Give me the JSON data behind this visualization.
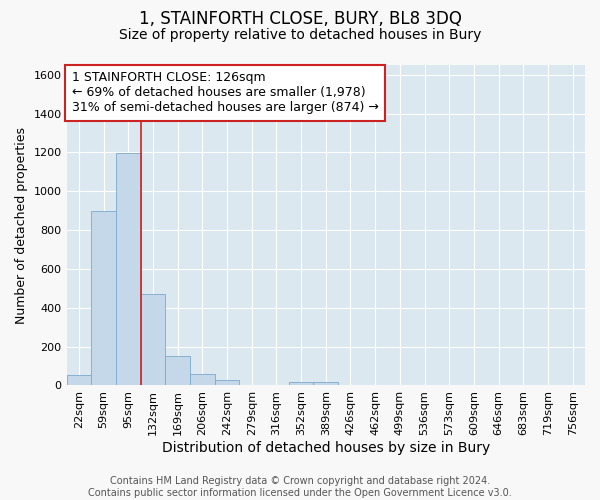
{
  "title": "1, STAINFORTH CLOSE, BURY, BL8 3DQ",
  "subtitle": "Size of property relative to detached houses in Bury",
  "xlabel": "Distribution of detached houses by size in Bury",
  "ylabel": "Number of detached properties",
  "footer_line1": "Contains HM Land Registry data © Crown copyright and database right 2024.",
  "footer_line2": "Contains public sector information licensed under the Open Government Licence v3.0.",
  "bar_labels": [
    "22sqm",
    "59sqm",
    "95sqm",
    "132sqm",
    "169sqm",
    "206sqm",
    "242sqm",
    "279sqm",
    "316sqm",
    "352sqm",
    "389sqm",
    "426sqm",
    "462sqm",
    "499sqm",
    "536sqm",
    "573sqm",
    "609sqm",
    "646sqm",
    "683sqm",
    "719sqm",
    "756sqm"
  ],
  "bar_values": [
    55,
    900,
    1195,
    470,
    150,
    60,
    30,
    0,
    0,
    20,
    20,
    0,
    0,
    0,
    0,
    0,
    0,
    0,
    0,
    0,
    0
  ],
  "bar_color": "#c5d8ea",
  "bar_edge_color": "#7aaacb",
  "vline_color": "#cc2222",
  "vline_x_idx": 2.5,
  "annotation_line1": "1 STAINFORTH CLOSE: 126sqm",
  "annotation_line2": "← 69% of detached houses are smaller (1,978)",
  "annotation_line3": "31% of semi-detached houses are larger (874) →",
  "annotation_box_facecolor": "#ffffff",
  "annotation_box_edgecolor": "#cc2222",
  "ylim": [
    0,
    1650
  ],
  "yticks": [
    0,
    200,
    400,
    600,
    800,
    1000,
    1200,
    1400,
    1600
  ],
  "fig_bg_color": "#f8f8f8",
  "plot_bg_color": "#dce8f0",
  "grid_color": "#ffffff",
  "title_fontsize": 12,
  "subtitle_fontsize": 10,
  "xlabel_fontsize": 10,
  "ylabel_fontsize": 9,
  "tick_fontsize": 8,
  "annotation_fontsize": 9,
  "footer_fontsize": 7
}
